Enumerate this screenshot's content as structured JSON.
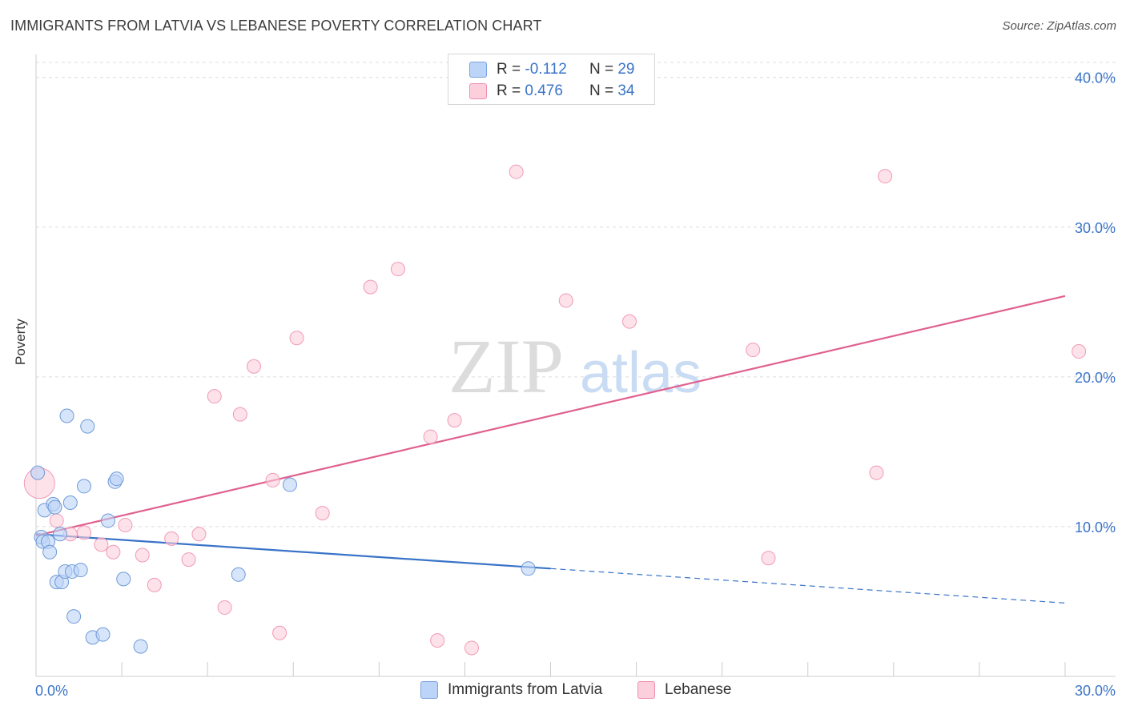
{
  "title": "IMMIGRANTS FROM LATVIA VS LEBANESE POVERTY CORRELATION CHART",
  "source": "Source: ZipAtlas.com",
  "watermark": {
    "zip": "ZIP",
    "atlas": "atlas"
  },
  "legend": {
    "rows": [
      {
        "r_label": "R =",
        "r_value": "-0.112",
        "n_label": "N =",
        "n_value": "29"
      },
      {
        "r_label": "R =",
        "r_value": "0.476",
        "n_label": "N =",
        "n_value": "34"
      }
    ]
  },
  "bottom_legend": {
    "series1": "Immigrants from Latvia",
    "series2": "Lebanese"
  },
  "colors": {
    "blue": "#3a74c8",
    "blue_fill": "#bcd4f7",
    "pink": "#e0608f",
    "pink_fill": "#fbcfdc"
  },
  "chart_data": {
    "type": "scatter",
    "title": "IMMIGRANTS FROM LATVIA VS LEBANESE POVERTY CORRELATION CHART",
    "xlabel": "",
    "ylabel": "Poverty",
    "xlim": [
      0,
      30
    ],
    "ylim": [
      0,
      41
    ],
    "x_tick_labels": [
      "0.0%",
      "30.0%"
    ],
    "y_ticks": [
      10,
      20,
      30,
      40
    ],
    "y_tick_labels": [
      "10.0%",
      "20.0%",
      "30.0%",
      "40.0%"
    ],
    "series": [
      {
        "name": "Immigrants from Latvia",
        "R": -0.112,
        "N": 29,
        "points": [
          [
            0.05,
            13.6
          ],
          [
            0.15,
            9.3
          ],
          [
            0.2,
            9.0
          ],
          [
            0.25,
            11.1
          ],
          [
            0.35,
            9.0
          ],
          [
            0.4,
            8.3
          ],
          [
            0.5,
            11.5
          ],
          [
            0.55,
            11.3
          ],
          [
            0.6,
            6.3
          ],
          [
            0.7,
            9.5
          ],
          [
            0.75,
            6.3
          ],
          [
            0.85,
            7.0
          ],
          [
            0.9,
            17.4
          ],
          [
            1.0,
            11.6
          ],
          [
            1.05,
            7.0
          ],
          [
            1.1,
            4.0
          ],
          [
            1.3,
            7.1
          ],
          [
            1.4,
            12.7
          ],
          [
            1.5,
            16.7
          ],
          [
            1.65,
            2.6
          ],
          [
            1.95,
            2.8
          ],
          [
            2.1,
            10.4
          ],
          [
            2.3,
            13.0
          ],
          [
            2.35,
            13.2
          ],
          [
            2.55,
            6.5
          ],
          [
            3.05,
            2.0
          ],
          [
            5.9,
            6.8
          ],
          [
            7.4,
            12.8
          ],
          [
            14.35,
            7.2
          ]
        ],
        "trend": {
          "x": [
            0,
            15
          ],
          "y": [
            9.5,
            7.2
          ]
        },
        "trend_dashed": {
          "x": [
            15,
            30
          ],
          "y": [
            7.2,
            4.9
          ]
        }
      },
      {
        "name": "Lebanese",
        "R": 0.476,
        "N": 34,
        "points": [
          [
            0.1,
            12.9
          ],
          [
            0.6,
            10.4
          ],
          [
            1.0,
            9.5
          ],
          [
            1.4,
            9.6
          ],
          [
            1.9,
            8.8
          ],
          [
            2.25,
            8.3
          ],
          [
            2.6,
            10.1
          ],
          [
            3.1,
            8.1
          ],
          [
            3.45,
            6.1
          ],
          [
            3.95,
            9.2
          ],
          [
            4.45,
            7.8
          ],
          [
            4.75,
            9.5
          ],
          [
            5.2,
            18.7
          ],
          [
            5.5,
            4.6
          ],
          [
            5.95,
            17.5
          ],
          [
            6.35,
            20.7
          ],
          [
            6.9,
            13.1
          ],
          [
            7.1,
            2.9
          ],
          [
            7.6,
            22.6
          ],
          [
            8.35,
            10.9
          ],
          [
            9.75,
            26.0
          ],
          [
            10.55,
            27.2
          ],
          [
            11.5,
            16.0
          ],
          [
            11.7,
            2.4
          ],
          [
            12.2,
            17.1
          ],
          [
            12.7,
            1.9
          ],
          [
            14.0,
            33.7
          ],
          [
            15.45,
            25.1
          ],
          [
            17.3,
            23.7
          ],
          [
            20.9,
            21.8
          ],
          [
            21.35,
            7.9
          ],
          [
            24.5,
            13.6
          ],
          [
            24.75,
            33.4
          ],
          [
            30.4,
            21.7
          ]
        ],
        "trend": {
          "x": [
            0,
            30
          ],
          "y": [
            9.4,
            25.4
          ]
        }
      }
    ]
  }
}
